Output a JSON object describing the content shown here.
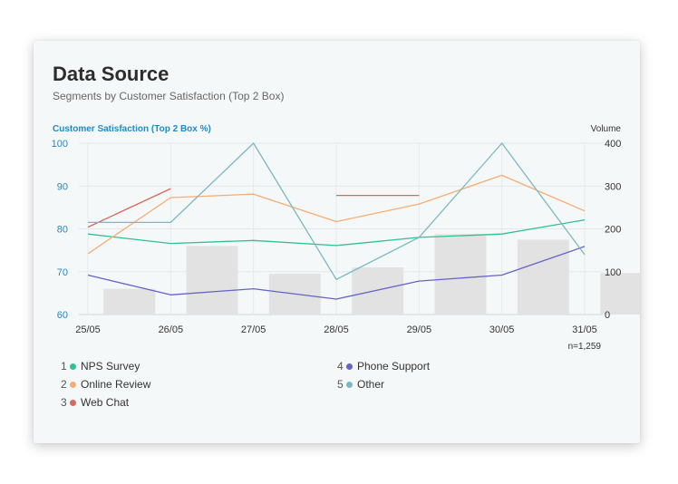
{
  "header": {
    "title": "Data Source",
    "subtitle": "Segments by Customer Satisfaction (Top 2 Box)"
  },
  "chart_data": {
    "type": "line",
    "categories": [
      "25/05",
      "26/05",
      "27/05",
      "28/05",
      "29/05",
      "30/05",
      "31/05"
    ],
    "y_left": {
      "label": "Customer Satisfaction (Top 2 Box %)",
      "ticks": [
        "100",
        "90",
        "80",
        "70",
        "60"
      ],
      "range": [
        60,
        100
      ]
    },
    "y_right": {
      "label": "Volume",
      "ticks": [
        "400",
        "300",
        "200",
        "100",
        "0"
      ],
      "range": [
        0,
        400
      ]
    },
    "sample_note": "n=1,259",
    "grid": true,
    "legend_position": "bottom",
    "volume_bars": [
      60,
      160,
      95,
      110,
      188,
      175,
      97
    ],
    "series": [
      {
        "index": "1",
        "name": "NPS Survey",
        "color": "#2ec28e",
        "values": [
          78.8,
          76.6,
          77.3,
          76.1,
          78.0,
          78.8,
          82.1
        ]
      },
      {
        "index": "2",
        "name": "Online Review",
        "color": "#f7ac72",
        "values": [
          74.2,
          87.3,
          88.1,
          81.7,
          85.8,
          92.5,
          84.2
        ]
      },
      {
        "index": "3",
        "name": "Web Chat",
        "color": "#d9675e",
        "values": [
          80.4,
          89.4,
          null,
          87.8,
          87.8,
          null,
          null
        ]
      },
      {
        "index": "4",
        "name": "Phone Support",
        "color": "#6464c8",
        "values": [
          69.2,
          64.6,
          66.0,
          63.6,
          67.8,
          69.2,
          75.9
        ]
      },
      {
        "index": "5",
        "name": "Other",
        "color": "#7ab8c2",
        "values": [
          81.5,
          81.5,
          100.0,
          68.2,
          78.0,
          100.0,
          74.0
        ]
      }
    ]
  }
}
